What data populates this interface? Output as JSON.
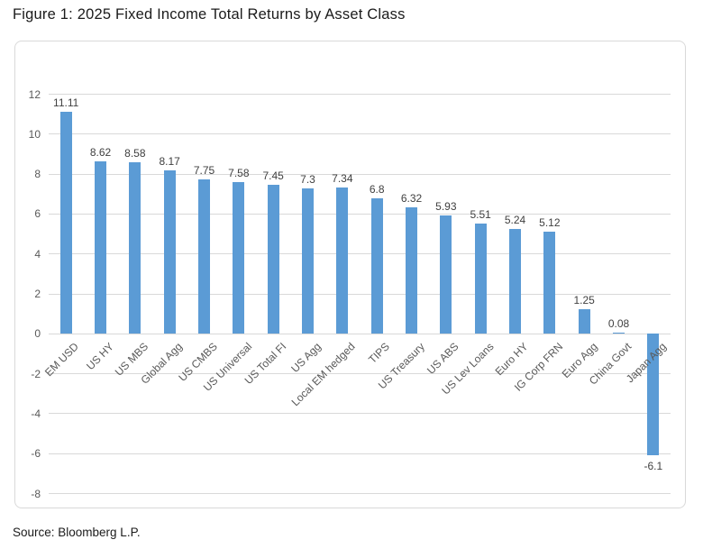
{
  "page": {
    "figure_title": "Figure 1: 2025 Fixed Income Total Returns by Asset Class",
    "source_note": "Source: Bloomberg L.P."
  },
  "colors": {
    "bar": "#5B9BD5",
    "gridline": "#D9D9D9",
    "chart_border": "#D9D9D9",
    "axis_text": "#595959",
    "value_label_text": "#404040",
    "category_text": "#595959",
    "title_text": "#1B1B1B"
  },
  "chart_data": {
    "type": "bar",
    "title": "Figure 1: 2025 Fixed Income Total Returns by Asset Class",
    "categories": [
      "EM USD",
      "US HY",
      "US MBS",
      "Global Agg",
      "US CMBS",
      "US Universal",
      "US Total FI",
      "US Agg",
      "Local EM hedged",
      "TIPS",
      "US Treasury",
      "US ABS",
      "US Lev Loans",
      "Euro HY",
      "IG Corp FRN",
      "Euro Agg",
      "China Govt",
      "Japan Agg"
    ],
    "values": [
      11.11,
      8.62,
      8.58,
      8.17,
      7.75,
      7.58,
      7.45,
      7.3,
      7.34,
      6.8,
      6.32,
      5.93,
      5.51,
      5.24,
      5.12,
      1.25,
      0.08,
      -6.1
    ],
    "data_labels": [
      "11.11",
      "8.62",
      "8.58",
      "8.17",
      "7.75",
      "7.58",
      "7.45",
      "7.3",
      "7.34",
      "6.8",
      "6.32",
      "5.93",
      "5.51",
      "5.24",
      "5.12",
      "1.25",
      "0.08",
      "-6.1"
    ],
    "xlabel": "",
    "ylabel": "",
    "ylim": [
      -8,
      12
    ],
    "yticks": [
      12,
      10,
      8,
      6,
      4,
      2,
      0,
      -2,
      -4,
      -6,
      -8
    ],
    "grid": true,
    "legend": false,
    "category_label_rotation_deg": 45,
    "source": "Source: Bloomberg L.P."
  }
}
